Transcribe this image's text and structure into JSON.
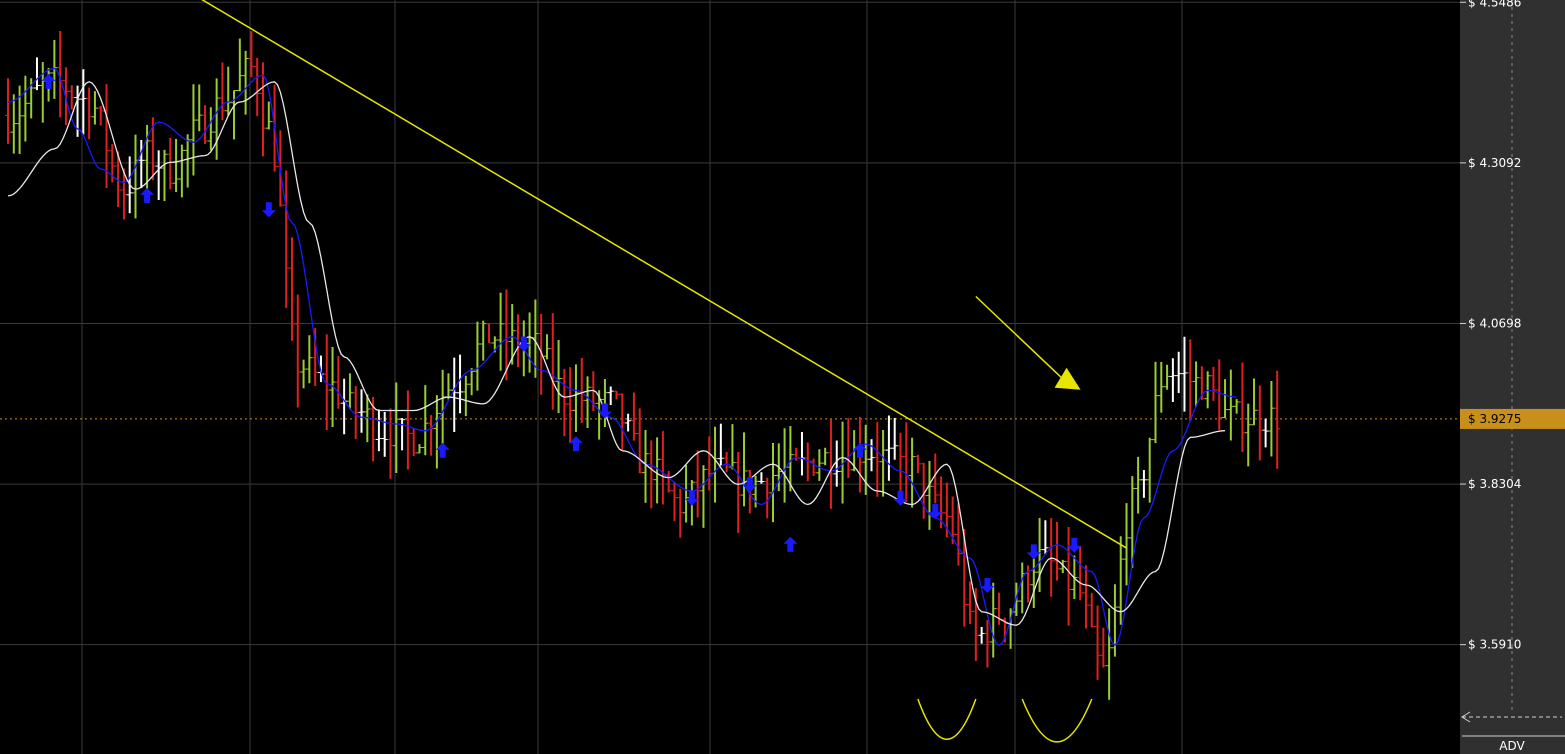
{
  "chart_data": {
    "type": "candlestick",
    "title": "",
    "xlabel": "",
    "ylabel": "",
    "y_axis_side": "right",
    "y_ticks": [
      {
        "value": 4.5486,
        "label": "$ 4.5486"
      },
      {
        "value": 4.3092,
        "label": "$ 4.3092"
      },
      {
        "value": 4.0698,
        "label": "$ 4.0698"
      },
      {
        "value": 3.8304,
        "label": "$ 3.8304"
      },
      {
        "value": 3.591,
        "label": "$ 3.5910"
      }
    ],
    "ylim": [
      3.428,
      4.552
    ],
    "x_count": 220,
    "current_price": {
      "value": 3.9275,
      "label": "$ 3.9275",
      "color": "#c8901a"
    },
    "grid": true,
    "colors": {
      "background": "#000000",
      "axis_panel": "#303030",
      "grid": "#3a3a3a",
      "up_bar": "#9acd32",
      "down_bar": "#e02020",
      "neutral_bar": "#ffffff",
      "fast_ma": "#1a1aff",
      "slow_ma": "#e8e8e8",
      "signal_arrow": "#1a1aff",
      "annotation": "#e6e600"
    },
    "keypoints": [
      [
        0,
        4.38
      ],
      [
        8,
        4.43
      ],
      [
        14,
        4.4
      ],
      [
        20,
        4.27
      ],
      [
        24,
        4.32
      ],
      [
        28,
        4.3
      ],
      [
        33,
        4.36
      ],
      [
        37,
        4.4
      ],
      [
        42,
        4.45
      ],
      [
        45,
        4.36
      ],
      [
        50,
        4.01
      ],
      [
        55,
        3.98
      ],
      [
        60,
        3.94
      ],
      [
        65,
        3.91
      ],
      [
        70,
        3.9
      ],
      [
        77,
        3.98
      ],
      [
        83,
        4.05
      ],
      [
        90,
        4.04
      ],
      [
        97,
        3.96
      ],
      [
        104,
        3.95
      ],
      [
        110,
        3.86
      ],
      [
        116,
        3.8
      ],
      [
        122,
        3.85
      ],
      [
        128,
        3.83
      ],
      [
        134,
        3.85
      ],
      [
        141,
        3.87
      ],
      [
        148,
        3.88
      ],
      [
        155,
        3.86
      ],
      [
        162,
        3.78
      ],
      [
        167,
        3.6
      ],
      [
        172,
        3.64
      ],
      [
        178,
        3.72
      ],
      [
        184,
        3.68
      ],
      [
        189,
        3.55
      ],
      [
        194,
        3.8
      ],
      [
        200,
        4.0
      ],
      [
        206,
        3.98
      ],
      [
        211,
        3.93
      ]
    ],
    "series": [
      {
        "name": "",
        "kind": "fast_ma",
        "keypoints": [
          [
            0,
            4.4
          ],
          [
            8,
            4.45
          ],
          [
            12,
            4.36
          ],
          [
            16,
            4.3
          ],
          [
            20,
            4.28
          ],
          [
            26,
            4.37
          ],
          [
            32,
            4.34
          ],
          [
            38,
            4.4
          ],
          [
            44,
            4.44
          ],
          [
            49,
            4.22
          ],
          [
            55,
            3.98
          ],
          [
            61,
            3.93
          ],
          [
            67,
            3.92
          ],
          [
            72,
            3.91
          ],
          [
            80,
            4.0
          ],
          [
            87,
            4.05
          ],
          [
            92,
            4.0
          ],
          [
            98,
            3.97
          ],
          [
            104,
            3.93
          ],
          [
            110,
            3.86
          ],
          [
            118,
            3.82
          ],
          [
            124,
            3.86
          ],
          [
            130,
            3.8
          ],
          [
            136,
            3.87
          ],
          [
            142,
            3.85
          ],
          [
            148,
            3.89
          ],
          [
            154,
            3.85
          ],
          [
            160,
            3.78
          ],
          [
            166,
            3.72
          ],
          [
            171,
            3.59
          ],
          [
            176,
            3.7
          ],
          [
            181,
            3.74
          ],
          [
            187,
            3.7
          ],
          [
            191,
            3.59
          ],
          [
            196,
            3.78
          ],
          [
            201,
            3.88
          ],
          [
            207,
            3.97
          ],
          [
            212,
            3.96
          ]
        ]
      },
      {
        "name": "",
        "kind": "slow_ma",
        "keypoints": [
          [
            0,
            4.26
          ],
          [
            8,
            4.33
          ],
          [
            14,
            4.43
          ],
          [
            22,
            4.27
          ],
          [
            28,
            4.31
          ],
          [
            34,
            4.32
          ],
          [
            40,
            4.4
          ],
          [
            46,
            4.43
          ],
          [
            52,
            4.22
          ],
          [
            58,
            4.02
          ],
          [
            64,
            3.94
          ],
          [
            70,
            3.94
          ],
          [
            76,
            3.96
          ],
          [
            82,
            3.95
          ],
          [
            90,
            4.05
          ],
          [
            96,
            3.96
          ],
          [
            101,
            3.97
          ],
          [
            106,
            3.88
          ],
          [
            114,
            3.84
          ],
          [
            120,
            3.88
          ],
          [
            126,
            3.83
          ],
          [
            132,
            3.86
          ],
          [
            138,
            3.8
          ],
          [
            144,
            3.87
          ],
          [
            150,
            3.82
          ],
          [
            156,
            3.8
          ],
          [
            162,
            3.86
          ],
          [
            168,
            3.64
          ],
          [
            174,
            3.62
          ],
          [
            180,
            3.72
          ],
          [
            186,
            3.68
          ],
          [
            192,
            3.64
          ],
          [
            198,
            3.7
          ],
          [
            204,
            3.9
          ],
          [
            210,
            3.91
          ]
        ]
      }
    ],
    "signal_arrows": [
      {
        "x": 7,
        "price": 4.43,
        "dir": "up"
      },
      {
        "x": 24,
        "price": 4.26,
        "dir": "up"
      },
      {
        "x": 45,
        "price": 4.24,
        "dir": "down"
      },
      {
        "x": 75,
        "price": 3.88,
        "dir": "up"
      },
      {
        "x": 89,
        "price": 4.04,
        "dir": "down"
      },
      {
        "x": 98,
        "price": 3.89,
        "dir": "up"
      },
      {
        "x": 103,
        "price": 3.94,
        "dir": "down"
      },
      {
        "x": 118,
        "price": 3.81,
        "dir": "down"
      },
      {
        "x": 128,
        "price": 3.83,
        "dir": "down"
      },
      {
        "x": 135,
        "price": 3.74,
        "dir": "up"
      },
      {
        "x": 147,
        "price": 3.88,
        "dir": "up"
      },
      {
        "x": 154,
        "price": 3.81,
        "dir": "down"
      },
      {
        "x": 160,
        "price": 3.79,
        "dir": "down"
      },
      {
        "x": 169,
        "price": 3.68,
        "dir": "down"
      },
      {
        "x": 177,
        "price": 3.73,
        "dir": "down"
      },
      {
        "x": 184,
        "price": 3.74,
        "dir": "down"
      }
    ],
    "trendline": {
      "x1": 33,
      "y1": 4.555,
      "x2": 193,
      "y2": 3.735
    },
    "arrow_annotation": {
      "x1": 167,
      "y1": 4.11,
      "x2": 183,
      "y2": 3.98
    },
    "u_markers": [
      {
        "x_left": 157,
        "x_right": 167,
        "top": 3.51,
        "bottom": 3.435
      },
      {
        "x_left": 175,
        "x_right": 187,
        "top": 3.51,
        "bottom": 3.43
      }
    ],
    "indicator_label": "ADV",
    "seed": 7
  }
}
